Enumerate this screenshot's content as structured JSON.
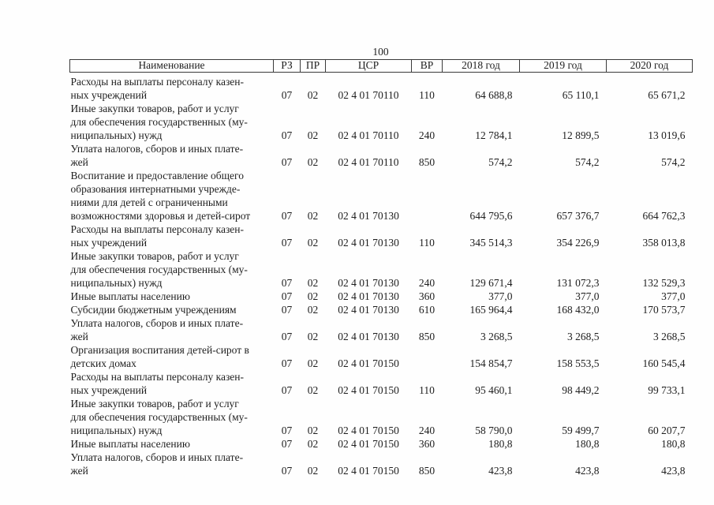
{
  "page": {
    "number": "100"
  },
  "table": {
    "headers": {
      "name": "Наименование",
      "rz": "РЗ",
      "pr": "ПР",
      "csr": "ЦСР",
      "vr": "ВР",
      "y2018": "2018 год",
      "y2019": "2019 год",
      "y2020": "2020 год"
    },
    "rows": [
      {
        "name": "Расходы на выплаты персоналу казен-\nных учреждений",
        "rz": "07",
        "pr": "02",
        "csr": "02 4 01 70110",
        "vr": "110",
        "y2018": "64 688,8",
        "y2019": "65 110,1",
        "y2020": "65 671,2"
      },
      {
        "name": "Иные закупки товаров, работ и услуг\nдля обеспечения государственных (му-\nниципальных) нужд",
        "rz": "07",
        "pr": "02",
        "csr": "02 4 01 70110",
        "vr": "240",
        "y2018": "12 784,1",
        "y2019": "12 899,5",
        "y2020": "13 019,6"
      },
      {
        "name": "Уплата налогов, сборов и иных плате-\nжей",
        "rz": "07",
        "pr": "02",
        "csr": "02 4 01 70110",
        "vr": "850",
        "y2018": "574,2",
        "y2019": "574,2",
        "y2020": "574,2"
      },
      {
        "name": "Воспитание и предоставление общего\nобразования интернатными учрежде-\nниями для детей с ограниченными\nвозможностями здоровья и детей-сирот",
        "rz": "07",
        "pr": "02",
        "csr": "02 4 01 70130",
        "vr": "",
        "y2018": "644 795,6",
        "y2019": "657 376,7",
        "y2020": "664 762,3"
      },
      {
        "name": "Расходы на выплаты персоналу казен-\nных учреждений",
        "rz": "07",
        "pr": "02",
        "csr": "02 4 01 70130",
        "vr": "110",
        "y2018": "345 514,3",
        "y2019": "354 226,9",
        "y2020": "358 013,8"
      },
      {
        "name": "Иные закупки товаров, работ и услуг\nдля обеспечения государственных (му-\nниципальных) нужд",
        "rz": "07",
        "pr": "02",
        "csr": "02 4 01 70130",
        "vr": "240",
        "y2018": "129 671,4",
        "y2019": "131 072,3",
        "y2020": "132 529,3"
      },
      {
        "name": "Иные выплаты населению",
        "rz": "07",
        "pr": "02",
        "csr": "02 4 01 70130",
        "vr": "360",
        "y2018": "377,0",
        "y2019": "377,0",
        "y2020": "377,0"
      },
      {
        "name": "Субсидии бюджетным учреждениям",
        "rz": "07",
        "pr": "02",
        "csr": "02 4 01 70130",
        "vr": "610",
        "y2018": "165 964,4",
        "y2019": "168 432,0",
        "y2020": "170 573,7"
      },
      {
        "name": "Уплата налогов, сборов и иных плате-\nжей",
        "rz": "07",
        "pr": "02",
        "csr": "02 4 01 70130",
        "vr": "850",
        "y2018": "3 268,5",
        "y2019": "3 268,5",
        "y2020": "3 268,5"
      },
      {
        "name": "Организация воспитания детей-сирот в\nдетских домах",
        "rz": "07",
        "pr": "02",
        "csr": "02 4 01 70150",
        "vr": "",
        "y2018": "154 854,7",
        "y2019": "158 553,5",
        "y2020": "160 545,4"
      },
      {
        "name": "Расходы на выплаты персоналу казен-\nных учреждений",
        "rz": "07",
        "pr": "02",
        "csr": "02 4 01 70150",
        "vr": "110",
        "y2018": "95 460,1",
        "y2019": "98 449,2",
        "y2020": "99 733,1"
      },
      {
        "name": "Иные закупки товаров, работ и услуг\nдля обеспечения государственных (му-\nниципальных) нужд",
        "rz": "07",
        "pr": "02",
        "csr": "02 4 01 70150",
        "vr": "240",
        "y2018": "58 790,0",
        "y2019": "59 499,7",
        "y2020": "60 207,7"
      },
      {
        "name": "Иные выплаты населению",
        "rz": "07",
        "pr": "02",
        "csr": "02 4 01 70150",
        "vr": "360",
        "y2018": "180,8",
        "y2019": "180,8",
        "y2020": "180,8"
      },
      {
        "name": "Уплата налогов, сборов и иных плате-\nжей",
        "rz": "07",
        "pr": "02",
        "csr": "02 4 01 70150",
        "vr": "850",
        "y2018": "423,8",
        "y2019": "423,8",
        "y2020": "423,8"
      }
    ]
  }
}
